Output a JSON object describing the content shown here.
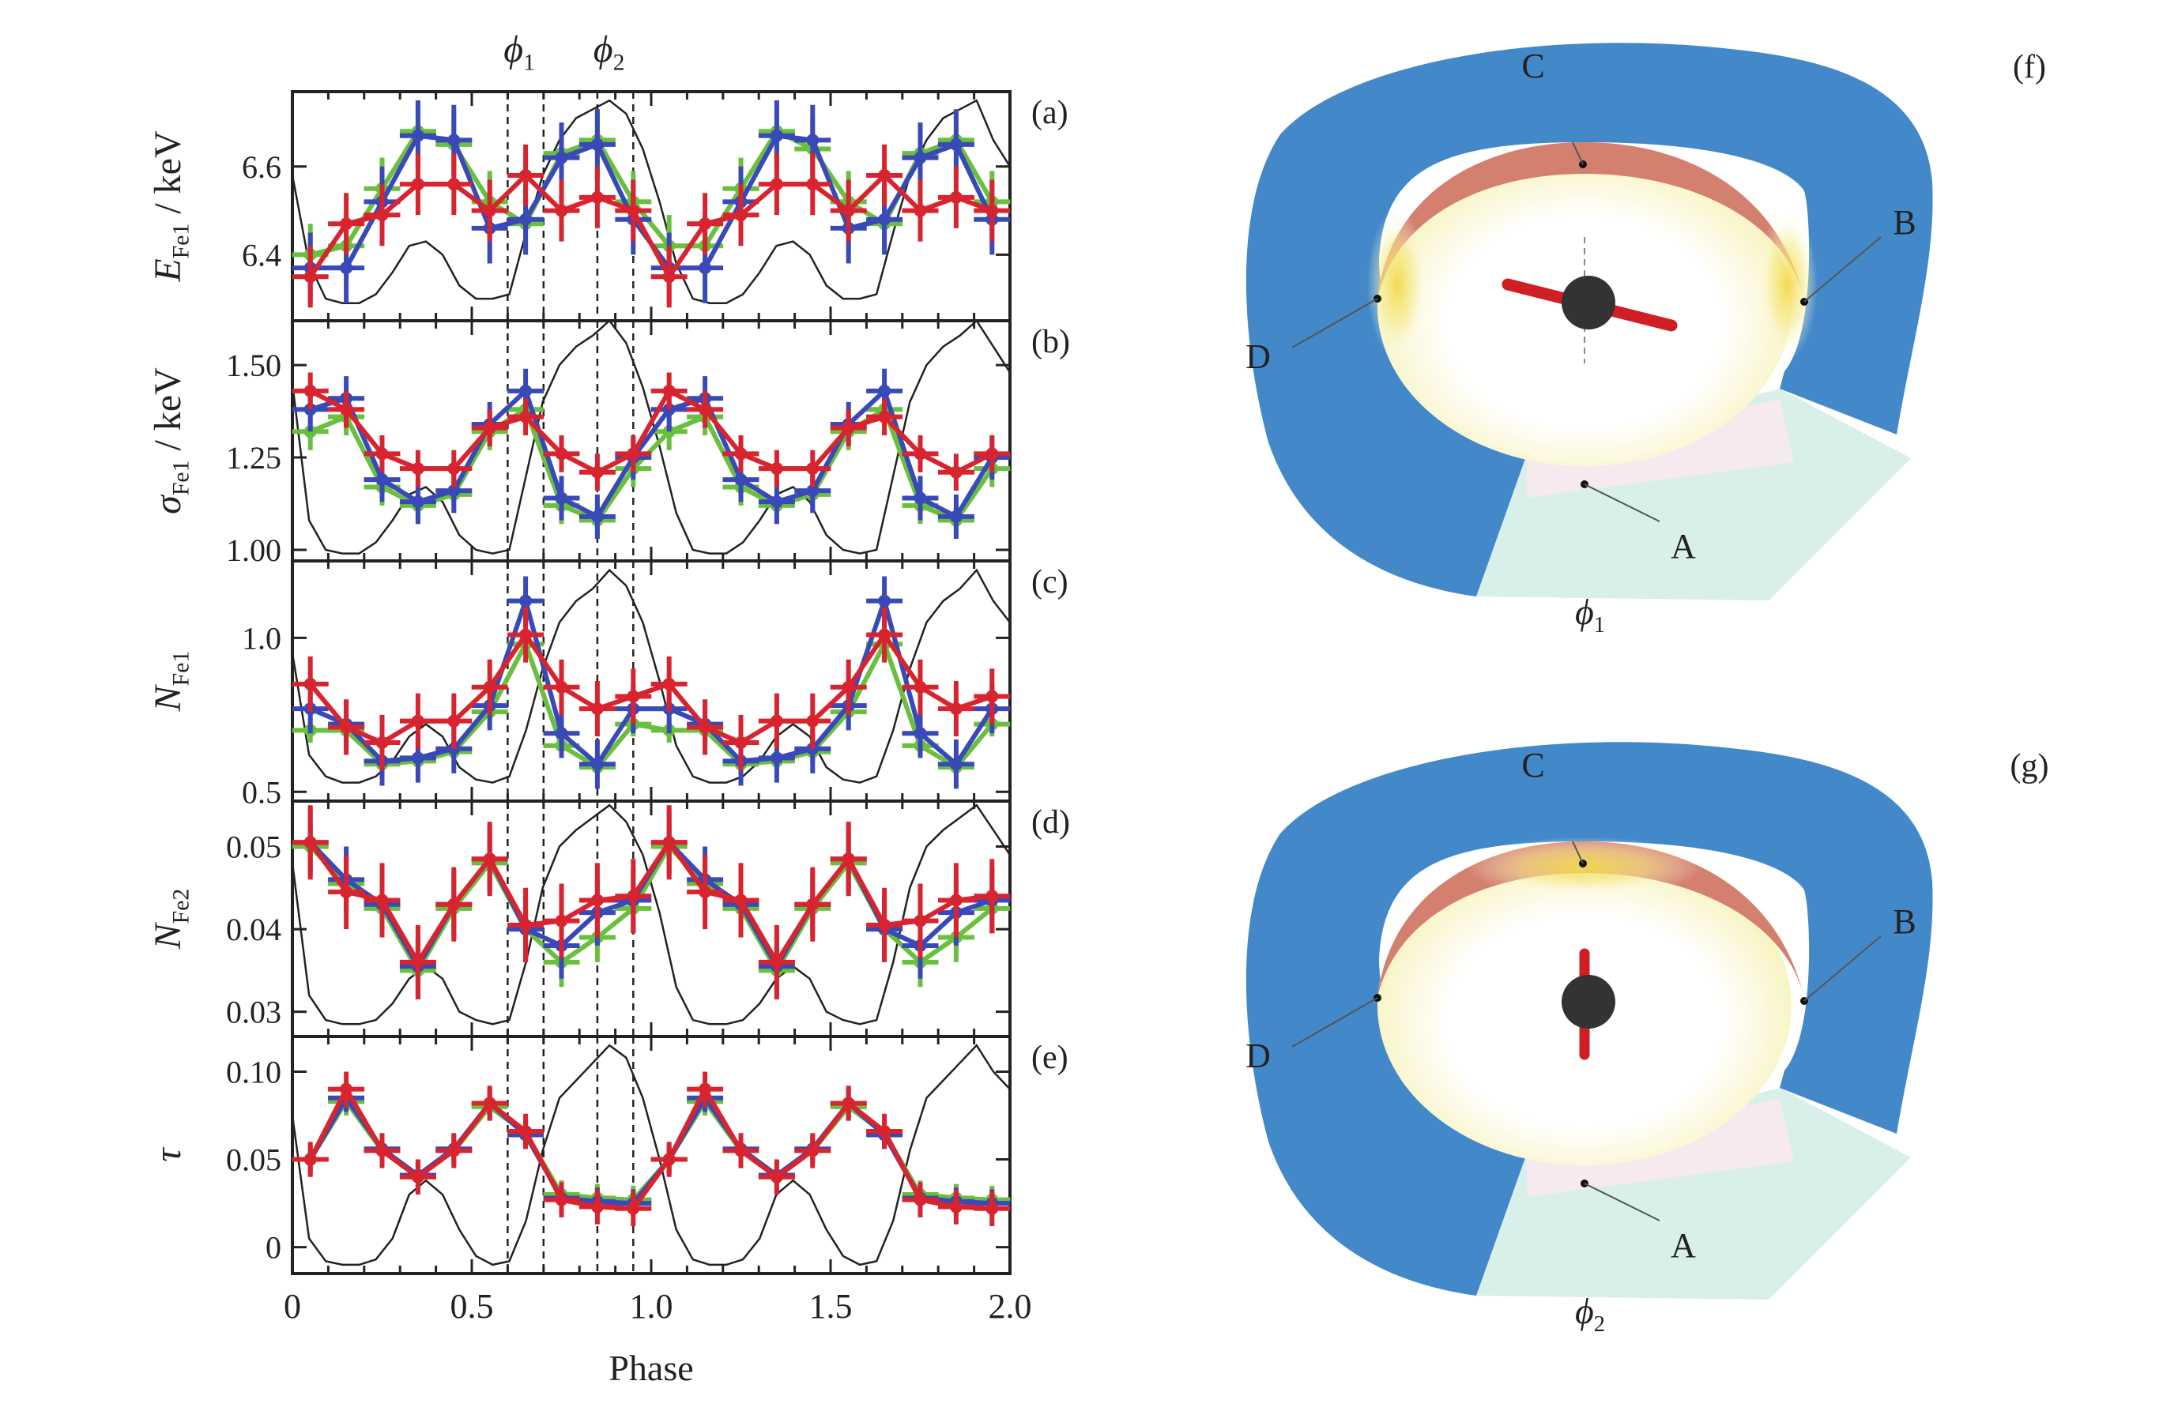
{
  "figure": {
    "phase_markers": [
      {
        "label_var": "ϕ",
        "label_sub": "1",
        "x_start": 0.6,
        "x_end": 0.7
      },
      {
        "label_var": "ϕ",
        "label_sub": "2",
        "x_start": 0.85,
        "x_end": 0.95
      }
    ],
    "x_axis": {
      "label": "Phase",
      "ticks": [
        "0",
        "0.5",
        "1.0",
        "1.5",
        "2.0"
      ],
      "range": [
        0,
        2
      ]
    },
    "series_colors": {
      "green": "#6abf3e",
      "blue": "#3a49b8",
      "red": "#d8242f",
      "profile": "#222222"
    }
  },
  "chart_data": [
    {
      "id": "a",
      "type": "line",
      "panel_label": "(a)",
      "ylabel_main": "E",
      "ylabel_sub": "Fe1",
      "ylabel_unit": " / keV",
      "ylim": [
        6.25,
        6.77
      ],
      "yticks": [
        6.4,
        6.6
      ],
      "ytick_labels": [
        "6.4",
        "6.6"
      ],
      "x": [
        0.05,
        0.15,
        0.25,
        0.35,
        0.45,
        0.55,
        0.65,
        0.75,
        0.85,
        0.95,
        1.05,
        1.15,
        1.25,
        1.35,
        1.45,
        1.55,
        1.65,
        1.75,
        1.85,
        1.95
      ],
      "series": [
        {
          "color": "green",
          "values": [
            6.4,
            6.42,
            6.55,
            6.68,
            6.65,
            6.52,
            6.47,
            6.63,
            6.66,
            6.52,
            6.42,
            6.42,
            6.55,
            6.68,
            6.64,
            6.52,
            6.47,
            6.63,
            6.66,
            6.52
          ],
          "err": 0.07
        },
        {
          "color": "blue",
          "values": [
            6.37,
            6.37,
            6.52,
            6.67,
            6.66,
            6.46,
            6.48,
            6.62,
            6.65,
            6.48,
            6.37,
            6.37,
            6.52,
            6.67,
            6.66,
            6.46,
            6.48,
            6.62,
            6.65,
            6.48
          ],
          "err": 0.08
        },
        {
          "color": "red",
          "values": [
            6.35,
            6.47,
            6.49,
            6.56,
            6.56,
            6.5,
            6.58,
            6.5,
            6.53,
            6.5,
            6.35,
            6.47,
            6.49,
            6.56,
            6.56,
            6.5,
            6.58,
            6.5,
            6.53,
            6.5
          ],
          "err": 0.07
        }
      ],
      "profile": [
        6.58,
        6.38,
        6.3,
        6.29,
        6.29,
        6.31,
        6.36,
        6.42,
        6.43,
        6.4,
        6.33,
        6.3,
        6.3,
        6.31,
        6.45,
        6.58,
        6.66,
        6.71,
        6.73,
        6.75,
        6.72,
        6.64,
        6.52,
        6.38,
        6.3,
        6.29,
        6.29,
        6.31,
        6.36,
        6.42,
        6.43,
        6.4,
        6.33,
        6.3,
        6.3,
        6.31,
        6.45,
        6.58,
        6.66,
        6.71,
        6.73,
        6.75,
        6.66,
        6.6
      ]
    },
    {
      "id": "b",
      "type": "line",
      "panel_label": "(b)",
      "ylabel_main": "σ",
      "ylabel_sub": "Fe1",
      "ylabel_unit": " / keV",
      "ylim": [
        0.97,
        1.62
      ],
      "yticks": [
        1.0,
        1.25,
        1.5
      ],
      "ytick_labels": [
        "1.00",
        "1.25",
        "1.50"
      ],
      "x": [
        0.05,
        0.15,
        0.25,
        0.35,
        0.45,
        0.55,
        0.65,
        0.75,
        0.85,
        0.95,
        1.05,
        1.15,
        1.25,
        1.35,
        1.45,
        1.55,
        1.65,
        1.75,
        1.85,
        1.95
      ],
      "series": [
        {
          "color": "green",
          "values": [
            1.32,
            1.36,
            1.17,
            1.12,
            1.15,
            1.32,
            1.38,
            1.12,
            1.08,
            1.22,
            1.32,
            1.36,
            1.17,
            1.12,
            1.15,
            1.32,
            1.38,
            1.12,
            1.08,
            1.22
          ],
          "err": 0.05
        },
        {
          "color": "blue",
          "values": [
            1.38,
            1.41,
            1.19,
            1.13,
            1.16,
            1.34,
            1.43,
            1.14,
            1.09,
            1.25,
            1.38,
            1.41,
            1.19,
            1.13,
            1.16,
            1.34,
            1.43,
            1.14,
            1.09,
            1.25
          ],
          "err": 0.06
        },
        {
          "color": "red",
          "values": [
            1.43,
            1.38,
            1.26,
            1.22,
            1.22,
            1.33,
            1.36,
            1.26,
            1.21,
            1.26,
            1.43,
            1.38,
            1.26,
            1.22,
            1.22,
            1.33,
            1.36,
            1.26,
            1.21,
            1.26
          ],
          "err": 0.05
        }
      ],
      "profile": [
        1.45,
        1.08,
        1.0,
        0.99,
        0.99,
        1.02,
        1.08,
        1.15,
        1.17,
        1.13,
        1.04,
        1.0,
        0.99,
        1.0,
        1.2,
        1.4,
        1.5,
        1.55,
        1.58,
        1.62,
        1.56,
        1.44,
        1.28,
        1.1,
        1.0,
        0.99,
        0.99,
        1.02,
        1.08,
        1.15,
        1.17,
        1.13,
        1.04,
        1.0,
        0.99,
        1.0,
        1.2,
        1.4,
        1.5,
        1.55,
        1.58,
        1.62,
        1.55,
        1.48
      ]
    },
    {
      "id": "c",
      "type": "line",
      "panel_label": "(c)",
      "ylabel_main": "N",
      "ylabel_sub": "Fe1",
      "ylabel_unit": "",
      "ylim": [
        0.47,
        1.25
      ],
      "yticks": [
        0.5,
        1.0
      ],
      "ytick_labels": [
        "0.5",
        "1.0"
      ],
      "x": [
        0.05,
        0.15,
        0.25,
        0.35,
        0.45,
        0.55,
        0.65,
        0.75,
        0.85,
        0.95,
        1.05,
        1.15,
        1.25,
        1.35,
        1.45,
        1.55,
        1.65,
        1.75,
        1.85,
        1.95
      ],
      "series": [
        {
          "color": "green",
          "values": [
            0.7,
            0.7,
            0.59,
            0.6,
            0.63,
            0.76,
            0.98,
            0.65,
            0.58,
            0.72,
            0.7,
            0.7,
            0.59,
            0.6,
            0.63,
            0.76,
            0.98,
            0.65,
            0.58,
            0.72
          ],
          "err": 0.04
        },
        {
          "color": "blue",
          "values": [
            0.77,
            0.72,
            0.6,
            0.61,
            0.64,
            0.78,
            1.12,
            0.69,
            0.59,
            0.77,
            0.77,
            0.72,
            0.6,
            0.61,
            0.64,
            0.78,
            1.12,
            0.69,
            0.59,
            0.77
          ],
          "err": 0.08
        },
        {
          "color": "red",
          "values": [
            0.85,
            0.71,
            0.66,
            0.73,
            0.73,
            0.84,
            1.01,
            0.84,
            0.77,
            0.81,
            0.85,
            0.71,
            0.66,
            0.73,
            0.73,
            0.84,
            1.01,
            0.84,
            0.77,
            0.81
          ],
          "err": 0.09
        }
      ],
      "profile": [
        0.95,
        0.62,
        0.55,
        0.53,
        0.53,
        0.55,
        0.6,
        0.68,
        0.72,
        0.68,
        0.58,
        0.54,
        0.53,
        0.55,
        0.7,
        0.9,
        1.05,
        1.12,
        1.16,
        1.22,
        1.17,
        1.05,
        0.86,
        0.65,
        0.55,
        0.53,
        0.53,
        0.55,
        0.6,
        0.68,
        0.72,
        0.68,
        0.58,
        0.54,
        0.53,
        0.55,
        0.7,
        0.9,
        1.05,
        1.12,
        1.16,
        1.22,
        1.12,
        1.05
      ]
    },
    {
      "id": "d",
      "type": "line",
      "panel_label": "(d)",
      "ylabel_main": "N",
      "ylabel_sub": "Fe2",
      "ylabel_unit": "",
      "ylim": [
        0.027,
        0.0555
      ],
      "yticks": [
        0.03,
        0.04,
        0.05
      ],
      "ytick_labels": [
        "0.03",
        "0.04",
        "0.05"
      ],
      "x": [
        0.05,
        0.15,
        0.25,
        0.35,
        0.45,
        0.55,
        0.65,
        0.75,
        0.85,
        0.95,
        1.05,
        1.15,
        1.25,
        1.35,
        1.45,
        1.55,
        1.65,
        1.75,
        1.85,
        1.95
      ],
      "series": [
        {
          "color": "green",
          "values": [
            0.05,
            0.0455,
            0.0425,
            0.035,
            0.0425,
            0.048,
            0.04,
            0.036,
            0.039,
            0.0425,
            0.05,
            0.0455,
            0.0425,
            0.035,
            0.0425,
            0.048,
            0.04,
            0.036,
            0.039,
            0.0425
          ],
          "err": 0.003
        },
        {
          "color": "blue",
          "values": [
            0.0505,
            0.046,
            0.043,
            0.0355,
            0.043,
            0.0485,
            0.04,
            0.038,
            0.042,
            0.0435,
            0.0505,
            0.046,
            0.043,
            0.0355,
            0.043,
            0.0485,
            0.04,
            0.038,
            0.042,
            0.0435
          ],
          "err": 0.004
        },
        {
          "color": "red",
          "values": [
            0.0505,
            0.0445,
            0.0435,
            0.036,
            0.043,
            0.0485,
            0.0405,
            0.041,
            0.0435,
            0.044,
            0.0505,
            0.0445,
            0.0435,
            0.036,
            0.043,
            0.0485,
            0.0405,
            0.041,
            0.0435,
            0.044
          ],
          "err": 0.0045
        }
      ],
      "profile": [
        0.048,
        0.032,
        0.029,
        0.0285,
        0.0285,
        0.029,
        0.031,
        0.034,
        0.0355,
        0.034,
        0.03,
        0.029,
        0.0285,
        0.029,
        0.036,
        0.045,
        0.05,
        0.052,
        0.0535,
        0.055,
        0.053,
        0.049,
        0.042,
        0.033,
        0.029,
        0.0285,
        0.0285,
        0.029,
        0.031,
        0.034,
        0.0355,
        0.034,
        0.03,
        0.029,
        0.0285,
        0.029,
        0.036,
        0.045,
        0.05,
        0.052,
        0.0535,
        0.055,
        0.052,
        0.049
      ]
    },
    {
      "id": "e",
      "type": "line",
      "panel_label": "(e)",
      "ylabel_main": "τ",
      "ylabel_sub": "",
      "ylabel_unit": "",
      "ylim": [
        -0.015,
        0.12
      ],
      "yticks": [
        0,
        0.05,
        0.1
      ],
      "ytick_labels": [
        "0",
        "0.05",
        "0.10"
      ],
      "x": [
        0.05,
        0.15,
        0.25,
        0.35,
        0.45,
        0.55,
        0.65,
        0.75,
        0.85,
        0.95,
        1.05,
        1.15,
        1.25,
        1.35,
        1.45,
        1.55,
        1.65,
        1.75,
        1.85,
        1.95
      ],
      "series": [
        {
          "color": "green",
          "values": [
            0.05,
            0.083,
            0.055,
            0.04,
            0.055,
            0.08,
            0.065,
            0.03,
            0.028,
            0.027,
            0.05,
            0.083,
            0.055,
            0.04,
            0.055,
            0.08,
            0.065,
            0.03,
            0.028,
            0.027
          ],
          "err": 0.008
        },
        {
          "color": "blue",
          "values": [
            0.05,
            0.085,
            0.056,
            0.041,
            0.056,
            0.082,
            0.064,
            0.028,
            0.026,
            0.025,
            0.05,
            0.085,
            0.056,
            0.041,
            0.056,
            0.082,
            0.064,
            0.028,
            0.026,
            0.025
          ],
          "err": 0.008
        },
        {
          "color": "red",
          "values": [
            0.05,
            0.09,
            0.055,
            0.04,
            0.055,
            0.082,
            0.066,
            0.027,
            0.023,
            0.022,
            0.05,
            0.09,
            0.055,
            0.04,
            0.055,
            0.082,
            0.066,
            0.027,
            0.023,
            0.022
          ],
          "err": 0.01
        }
      ],
      "profile": [
        0.075,
        0.005,
        -0.008,
        -0.01,
        -0.01,
        -0.007,
        0.005,
        0.03,
        0.038,
        0.03,
        0.01,
        -0.005,
        -0.01,
        -0.008,
        0.015,
        0.055,
        0.085,
        0.095,
        0.105,
        0.115,
        0.108,
        0.085,
        0.05,
        0.01,
        -0.007,
        -0.01,
        -0.01,
        -0.007,
        0.005,
        0.03,
        0.038,
        0.03,
        0.01,
        -0.005,
        -0.01,
        -0.008,
        0.015,
        0.055,
        0.085,
        0.095,
        0.105,
        0.115,
        0.1,
        0.09
      ]
    }
  ],
  "diagrams": [
    {
      "id": "f",
      "panel_label": "(f)",
      "phase_var": "ϕ",
      "phase_sub": "1",
      "points": [
        "C",
        "B",
        "D",
        "A"
      ],
      "rim_glow": "sides"
    },
    {
      "id": "g",
      "panel_label": "(g)",
      "phase_var": "ϕ",
      "phase_sub": "2",
      "points": [
        "C",
        "B",
        "D",
        "A"
      ],
      "rim_glow": "top"
    }
  ],
  "colors": {
    "disk_outer": "#4389c9",
    "rim_front": "#d4806e",
    "glow": "#f3d94a",
    "ground": "#d8efea",
    "ground_light": "#f7eaee",
    "jet": "#cf1f24",
    "star": "#333333"
  }
}
